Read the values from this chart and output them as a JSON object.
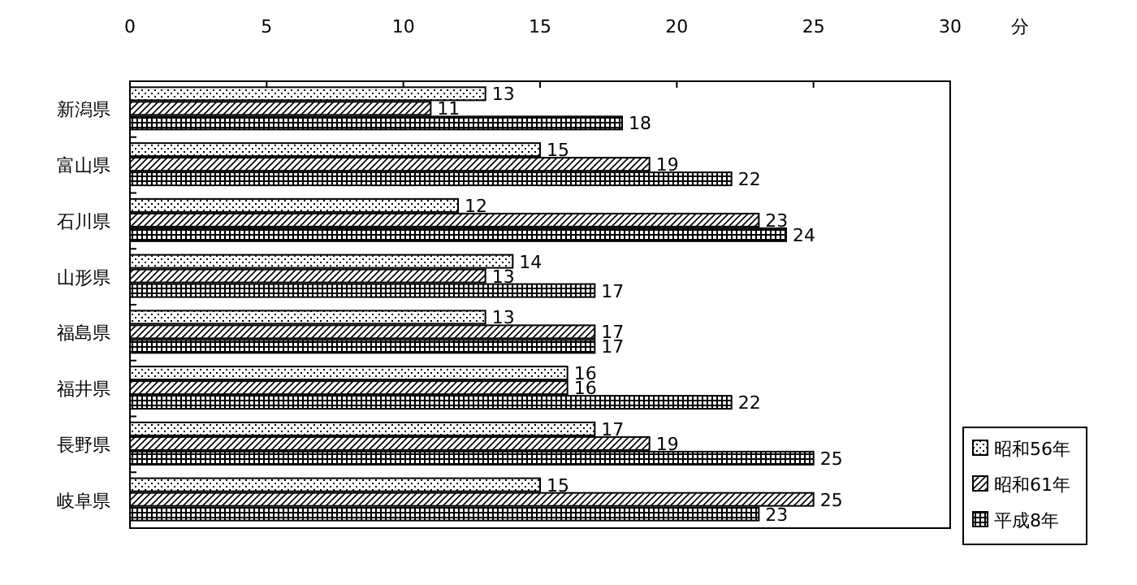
{
  "chart_data": {
    "type": "bar",
    "orientation": "horizontal",
    "xlabel": "分",
    "categories": [
      "新潟県",
      "富山県",
      "石川県",
      "山形県",
      "福島県",
      "福井県",
      "長野県",
      "岐阜県"
    ],
    "series": [
      {
        "name": "昭和56年",
        "color": "#000000",
        "values": [
          13,
          15,
          12,
          14,
          13,
          16,
          17,
          15
        ]
      },
      {
        "name": "昭和61年",
        "color": "#000000",
        "values": [
          11,
          19,
          23,
          13,
          17,
          16,
          19,
          25
        ]
      },
      {
        "name": "平成8年",
        "color": "#000000",
        "values": [
          18,
          22,
          24,
          17,
          17,
          22,
          25,
          23
        ]
      }
    ],
    "xlim": [
      0,
      30
    ],
    "xticks": [
      0,
      5,
      10,
      15,
      20,
      25,
      30
    ],
    "data_labels": true,
    "legend": "bottom right",
    "grid": false
  }
}
